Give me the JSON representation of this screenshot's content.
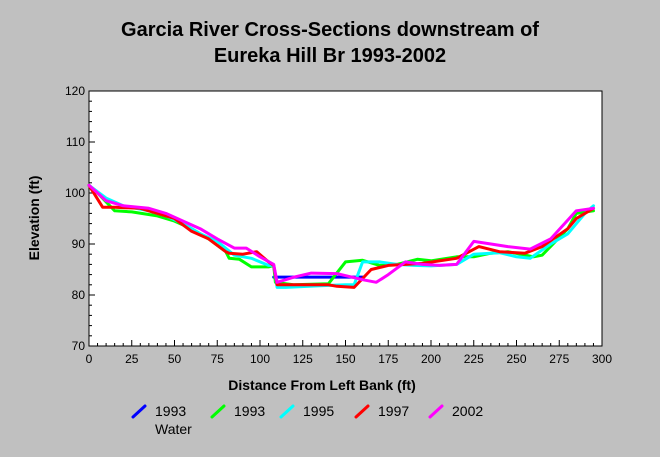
{
  "chart_data": {
    "type": "line",
    "title_lines": [
      "Garcia River Cross-Sections downstream of",
      "Eureka Hill Br 1993-2002"
    ],
    "xlabel": "Distance From Left Bank (ft)",
    "ylabel": "Elevation (ft)",
    "xlim": [
      0,
      300
    ],
    "ylim": [
      70,
      120
    ],
    "xticks": [
      0,
      25,
      50,
      75,
      100,
      125,
      150,
      175,
      200,
      225,
      250,
      275,
      300
    ],
    "yticks": [
      70,
      80,
      90,
      100,
      110,
      120
    ],
    "grid": false,
    "legend_position": "bottom",
    "series": [
      {
        "name": "1993 Water",
        "color": "#0000ff",
        "points": [
          [
            108,
            83.5
          ],
          [
            160,
            83.5
          ]
        ]
      },
      {
        "name": "1993",
        "color": "#00ff00",
        "points": [
          [
            0,
            101.5
          ],
          [
            5,
            100
          ],
          [
            15,
            96.5
          ],
          [
            25,
            96.3
          ],
          [
            40,
            95.5
          ],
          [
            50,
            94.5
          ],
          [
            60,
            93
          ],
          [
            70,
            91
          ],
          [
            80,
            88.5
          ],
          [
            82,
            87.2
          ],
          [
            88,
            87
          ],
          [
            95,
            85.5
          ],
          [
            105,
            85.5
          ],
          [
            108,
            85.8
          ],
          [
            109,
            82.5
          ],
          [
            120,
            82
          ],
          [
            140,
            82.2
          ],
          [
            150,
            86.5
          ],
          [
            160,
            86.8
          ],
          [
            170,
            85.8
          ],
          [
            180,
            86
          ],
          [
            192,
            87
          ],
          [
            200,
            86.7
          ],
          [
            215,
            87.5
          ],
          [
            225,
            87.5
          ],
          [
            235,
            88.2
          ],
          [
            245,
            88.5
          ],
          [
            260,
            87.5
          ],
          [
            265,
            87.8
          ],
          [
            280,
            93
          ],
          [
            285,
            96
          ],
          [
            295,
            96.5
          ]
        ]
      },
      {
        "name": "1995",
        "color": "#00ffff",
        "points": [
          [
            0,
            101.5
          ],
          [
            10,
            99
          ],
          [
            20,
            97.5
          ],
          [
            35,
            96.5
          ],
          [
            45,
            95.5
          ],
          [
            55,
            94
          ],
          [
            65,
            92
          ],
          [
            75,
            90.5
          ],
          [
            85,
            87.8
          ],
          [
            95,
            87.2
          ],
          [
            105,
            85.8
          ],
          [
            108,
            85.8
          ],
          [
            110,
            81.5
          ],
          [
            115,
            81.5
          ],
          [
            135,
            81.8
          ],
          [
            150,
            82
          ],
          [
            155,
            82
          ],
          [
            160,
            86.5
          ],
          [
            170,
            86.5
          ],
          [
            180,
            86
          ],
          [
            190,
            85.8
          ],
          [
            200,
            85.7
          ],
          [
            215,
            86
          ],
          [
            225,
            88
          ],
          [
            240,
            88.3
          ],
          [
            250,
            87.5
          ],
          [
            258,
            87.2
          ],
          [
            270,
            90
          ],
          [
            280,
            92
          ],
          [
            290,
            96
          ],
          [
            295,
            97.5
          ]
        ]
      },
      {
        "name": "1997",
        "color": "#ff0000",
        "points": [
          [
            0,
            101.5
          ],
          [
            8,
            97.2
          ],
          [
            15,
            97.2
          ],
          [
            30,
            97
          ],
          [
            40,
            96
          ],
          [
            50,
            95
          ],
          [
            60,
            92.5
          ],
          [
            70,
            91
          ],
          [
            80,
            88.5
          ],
          [
            82,
            88.2
          ],
          [
            90,
            88
          ],
          [
            98,
            88.5
          ],
          [
            105,
            86.5
          ],
          [
            108,
            85.8
          ],
          [
            110,
            82
          ],
          [
            120,
            82
          ],
          [
            140,
            82
          ],
          [
            145,
            81.7
          ],
          [
            155,
            81.5
          ],
          [
            165,
            85
          ],
          [
            175,
            85.8
          ],
          [
            185,
            86
          ],
          [
            195,
            86.2
          ],
          [
            215,
            87.2
          ],
          [
            228,
            89.5
          ],
          [
            240,
            88.5
          ],
          [
            255,
            88.2
          ],
          [
            265,
            89.5
          ],
          [
            280,
            93
          ],
          [
            285,
            95
          ],
          [
            295,
            97
          ]
        ]
      },
      {
        "name": "2002",
        "color": "#ff00ff",
        "points": [
          [
            0,
            101.5
          ],
          [
            10,
            98.5
          ],
          [
            20,
            97.5
          ],
          [
            35,
            97
          ],
          [
            45,
            96
          ],
          [
            55,
            94.5
          ],
          [
            65,
            93
          ],
          [
            75,
            91
          ],
          [
            85,
            89.2
          ],
          [
            92,
            89.2
          ],
          [
            100,
            87.5
          ],
          [
            108,
            86
          ],
          [
            110,
            82.5
          ],
          [
            120,
            83.5
          ],
          [
            130,
            84.3
          ],
          [
            145,
            84.2
          ],
          [
            160,
            83
          ],
          [
            168,
            82.5
          ],
          [
            175,
            84
          ],
          [
            185,
            86.5
          ],
          [
            195,
            86
          ],
          [
            205,
            85.8
          ],
          [
            215,
            86
          ],
          [
            225,
            90.5
          ],
          [
            235,
            90
          ],
          [
            245,
            89.5
          ],
          [
            258,
            89
          ],
          [
            270,
            91
          ],
          [
            285,
            96.5
          ],
          [
            295,
            97
          ]
        ]
      }
    ],
    "legend_labels": [
      [
        "1993",
        "Water"
      ],
      [
        "1993"
      ],
      [
        "1995"
      ],
      [
        "1997"
      ],
      [
        "2002"
      ]
    ]
  }
}
